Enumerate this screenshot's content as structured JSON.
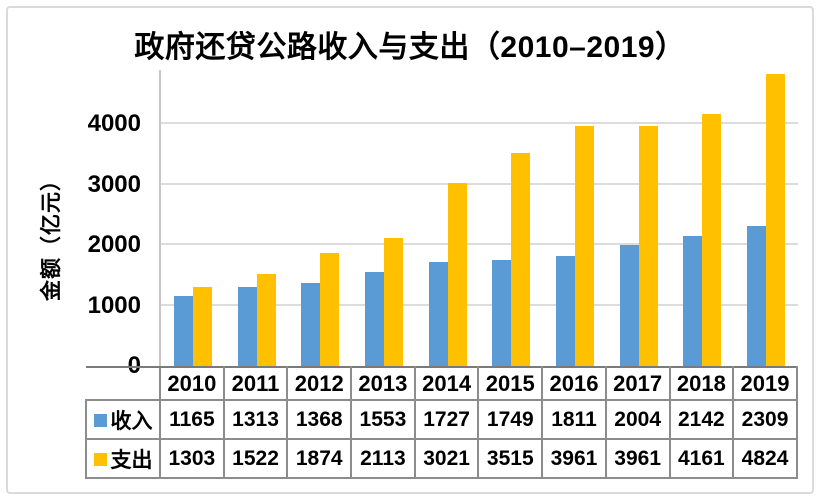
{
  "title": "政府还贷公路收入与支出（2010–2019）",
  "y_axis": {
    "label": "金额（亿元）",
    "ticks": [
      "0",
      "1000",
      "2000",
      "3000",
      "4000"
    ]
  },
  "chart_data": {
    "type": "bar",
    "title": "政府还贷公路收入与支出（2010–2019）",
    "xlabel": "",
    "ylabel": "金额（亿元）",
    "categories": [
      "2010",
      "2011",
      "2012",
      "2013",
      "2014",
      "2015",
      "2016",
      "2017",
      "2018",
      "2019"
    ],
    "series": [
      {
        "key": "income",
        "name": "收入",
        "color": "#5B9BD5",
        "values": [
          1165,
          1313,
          1368,
          1553,
          1727,
          1749,
          1811,
          2004,
          2142,
          2309
        ]
      },
      {
        "key": "expense",
        "name": "支出",
        "color": "#FFC000",
        "values": [
          1303,
          1522,
          1874,
          2113,
          3021,
          3515,
          3961,
          3961,
          4161,
          4824
        ]
      }
    ],
    "yticks": [
      0,
      1000,
      2000,
      3000,
      4000
    ],
    "ylim": [
      0,
      4900
    ],
    "grid": true,
    "legend_position": "data-table-left",
    "data_table_shown": true
  }
}
